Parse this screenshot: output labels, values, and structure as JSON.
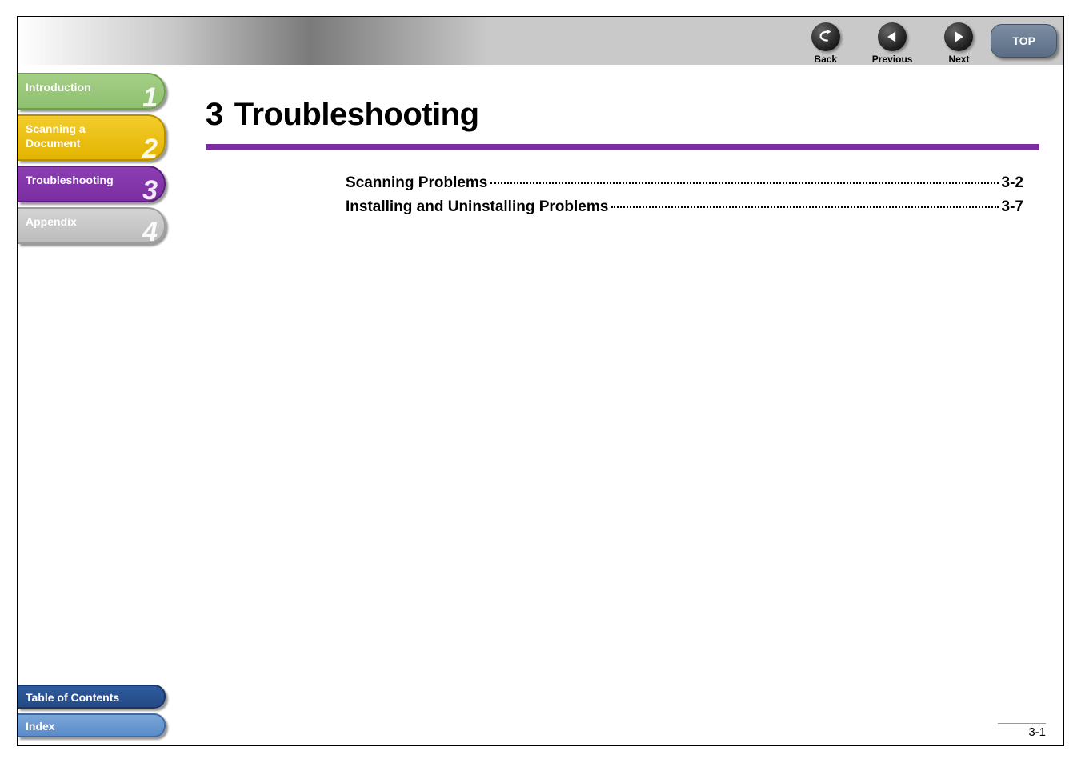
{
  "topbar": {
    "buttons": [
      {
        "label": "Back",
        "icon": "back"
      },
      {
        "label": "Previous",
        "icon": "prev"
      },
      {
        "label": "Next",
        "icon": "next"
      }
    ],
    "top_label": "TOP"
  },
  "sidebar": {
    "tabs": [
      {
        "label": "Introduction",
        "num": "1",
        "style": "green",
        "lines": 1
      },
      {
        "label": "Scanning a\nDocument",
        "num": "2",
        "style": "yellow",
        "lines": 2
      },
      {
        "label": "Troubleshooting",
        "num": "3",
        "style": "purple",
        "lines": 1
      },
      {
        "label": "Appendix",
        "num": "4",
        "style": "gray",
        "lines": 1
      }
    ],
    "bottom_links": [
      {
        "label": "Table of Contents",
        "style": "dark"
      },
      {
        "label": "Index",
        "style": "light"
      }
    ]
  },
  "content": {
    "chapter_num": "3",
    "title": "Troubleshooting",
    "underline_color": "#7a2ea1",
    "toc": [
      {
        "title": "Scanning Problems",
        "page": "3-2"
      },
      {
        "title": "Installing and Uninstalling Problems",
        "page": "3-7"
      }
    ],
    "page_number": "3-1"
  },
  "colors": {
    "green": "#8fc06f",
    "yellow": "#e3b400",
    "purple": "#7a2ea1",
    "gray": "#bcbcbc",
    "blue_dark": "#234a85",
    "blue_light": "#5a8cc9"
  }
}
